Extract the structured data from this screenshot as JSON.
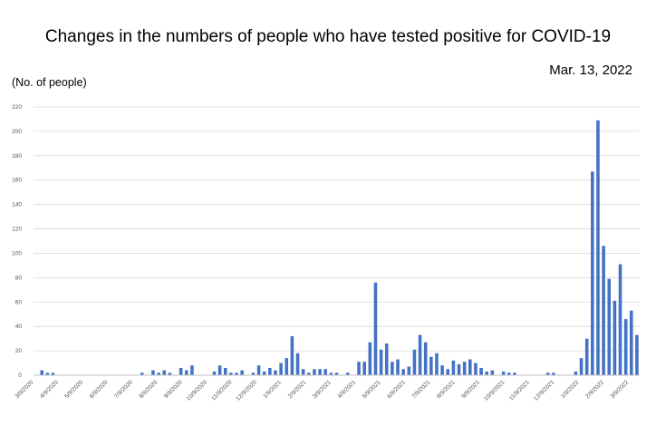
{
  "chart_data": {
    "type": "bar",
    "title": "Changes in the numbers of people who have tested positive for COVID-19",
    "date": "Mar. 13, 2022",
    "ylabel": "(No. of people)",
    "xlabel": "",
    "ylim": [
      0,
      220
    ],
    "yticks": [
      0,
      20,
      40,
      60,
      80,
      100,
      120,
      140,
      160,
      180,
      200,
      220
    ],
    "bar_color": "#4472c4",
    "grid": true,
    "x_tick_labels": [
      "3/9/2020",
      "4/9/2020",
      "5/9/2020",
      "6/9/2020",
      "7/9/2020",
      "8/9/2020",
      "9/9/2020",
      "10/9/2020",
      "11/9/2020",
      "12/9/2020",
      "1/9/2021",
      "2/9/2021",
      "3/9/2021",
      "4/9/2021",
      "5/9/2021",
      "6/9/2021",
      "7/9/2021",
      "8/9/2021",
      "9/9/2021",
      "10/9/2021",
      "11/9/2021",
      "12/9/2021",
      "1/9/2022",
      "2/9/2022",
      "3/9/2022"
    ],
    "values": [
      0,
      4,
      2,
      2,
      0,
      0,
      0,
      0,
      0,
      0,
      0,
      0,
      0,
      0,
      0,
      0,
      0,
      0,
      0,
      2,
      0,
      4,
      2,
      4,
      2,
      0,
      6,
      4,
      8,
      0,
      0,
      0,
      3,
      8,
      6,
      2,
      2,
      4,
      0,
      2,
      8,
      3,
      6,
      4,
      10,
      14,
      32,
      18,
      5,
      2,
      5,
      5,
      5,
      2,
      2,
      0,
      2,
      0,
      11,
      11,
      27,
      76,
      21,
      26,
      11,
      13,
      5,
      7,
      21,
      33,
      27,
      15,
      18,
      8,
      5,
      12,
      9,
      11,
      13,
      10,
      6,
      3,
      4,
      0,
      3,
      2,
      2,
      0,
      0,
      0,
      0,
      0,
      2,
      2,
      0,
      0,
      0,
      3,
      14,
      30,
      167,
      209,
      106,
      79,
      61,
      91,
      46,
      53,
      33
    ]
  }
}
